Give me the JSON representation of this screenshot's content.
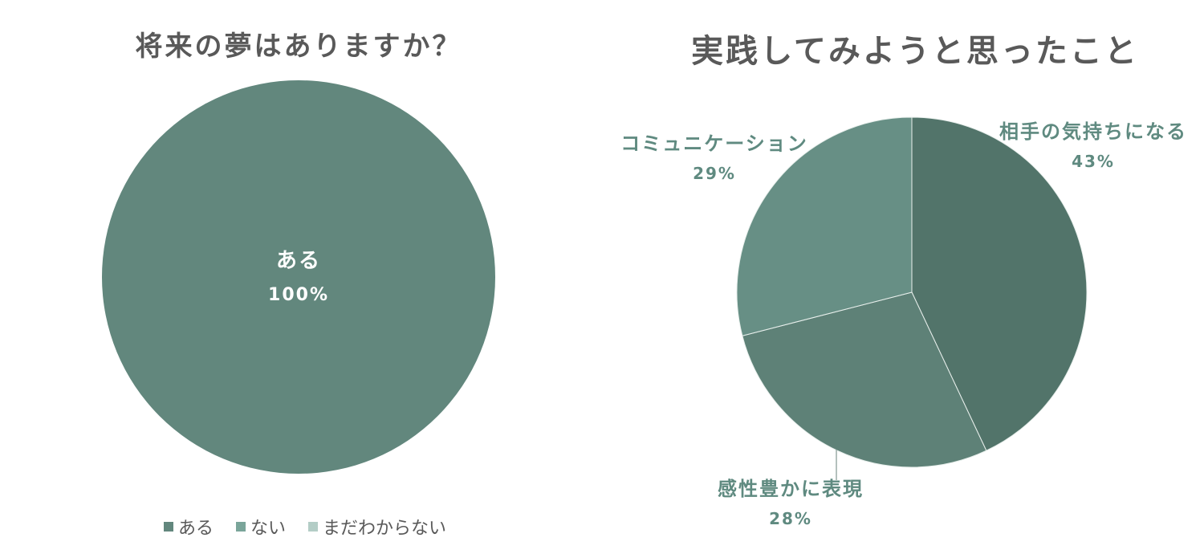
{
  "chart_data": [
    {
      "type": "pie",
      "title": "将来の夢はありますか？",
      "categories": [
        "ある",
        "ない",
        "まだわからない"
      ],
      "values": [
        100,
        0,
        0
      ],
      "data_labels": [
        "100%",
        "",
        ""
      ],
      "colors": [
        "#62877d",
        "#7aa59a",
        "#b3cdc6"
      ],
      "legend_position": "bottom"
    },
    {
      "type": "pie",
      "title": "実践してみようと思ったこと",
      "categories": [
        "相手の気持ちになる",
        "感性豊かに表現",
        "コミュニケーション"
      ],
      "values": [
        43,
        28,
        29
      ],
      "data_labels": [
        "43%",
        "28%",
        "29%"
      ],
      "colors": [
        "#52746a",
        "#5e8177",
        "#678f85"
      ],
      "label_color": "#5f8a80",
      "legend_position": "none"
    }
  ]
}
